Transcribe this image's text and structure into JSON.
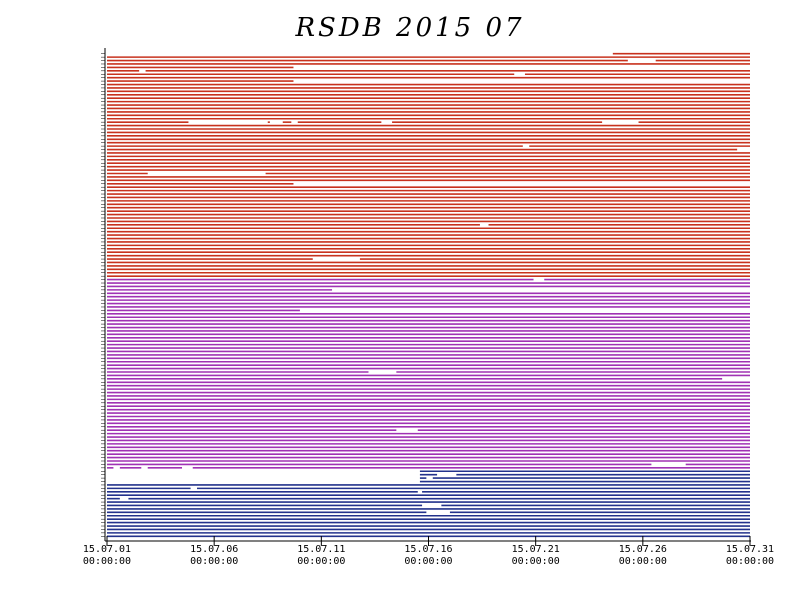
{
  "chart_data": {
    "type": "availability",
    "title": "RSDB 2015 07",
    "xlim": [
      0,
      30
    ],
    "xticks": [
      {
        "value": 0,
        "label": "15.07.01",
        "time": "00:00:00"
      },
      {
        "value": 5,
        "label": "15.07.06",
        "time": "00:00:00"
      },
      {
        "value": 10,
        "label": "15.07.11",
        "time": "00:00:00"
      },
      {
        "value": 15,
        "label": "15.07.16",
        "time": "00:00:00"
      },
      {
        "value": 20,
        "label": "15.07.21",
        "time": "00:00:00"
      },
      {
        "value": 25,
        "label": "15.07.26",
        "time": "00:00:00"
      },
      {
        "value": 30,
        "label": "15.07.31",
        "time": "00:00:00"
      }
    ],
    "groups": [
      {
        "color": "#c8321e",
        "rows": [
          [
            [
              23.6,
              30
            ]
          ],
          [
            [
              0,
              30
            ]
          ],
          [
            [
              0,
              24.3
            ],
            [
              25.6,
              30
            ]
          ],
          [
            [
              0,
              30
            ]
          ],
          [
            [
              0,
              8.7
            ]
          ],
          [
            [
              0,
              1.5
            ],
            [
              1.8,
              30
            ]
          ],
          [
            [
              0,
              19
            ],
            [
              19.5,
              30
            ]
          ],
          [
            [
              0,
              30
            ]
          ],
          [
            [
              0,
              8.7
            ]
          ],
          [
            [
              0,
              30
            ]
          ],
          [
            [
              0,
              30
            ]
          ],
          [
            [
              0,
              30
            ]
          ],
          [
            [
              0,
              30
            ]
          ],
          [
            [
              0,
              30
            ]
          ],
          [
            [
              0,
              30
            ]
          ],
          [
            [
              0,
              30
            ]
          ],
          [
            [
              0,
              30
            ]
          ],
          [
            [
              0,
              30
            ]
          ],
          [
            [
              0,
              30
            ]
          ],
          [
            [
              0,
              30
            ]
          ],
          [
            [
              0,
              3.8
            ],
            [
              7.5,
              7.6
            ],
            [
              8.2,
              8.6
            ],
            [
              8.9,
              12.8
            ],
            [
              13.3,
              23.1
            ],
            [
              24.8,
              30
            ]
          ],
          [
            [
              0,
              30
            ]
          ],
          [
            [
              0,
              30
            ]
          ],
          [
            [
              0,
              30
            ]
          ],
          [
            [
              0,
              30
            ]
          ],
          [
            [
              0,
              30
            ]
          ],
          [
            [
              0,
              30
            ]
          ],
          [
            [
              0,
              19.4
            ],
            [
              19.7,
              30
            ]
          ],
          [
            [
              0,
              29.4
            ]
          ],
          [
            [
              0,
              30
            ]
          ],
          [
            [
              0,
              30
            ]
          ],
          [
            [
              0,
              30
            ]
          ],
          [
            [
              0,
              30
            ]
          ],
          [
            [
              0,
              30
            ]
          ],
          [
            [
              0,
              30
            ]
          ],
          [
            [
              0,
              1.9
            ],
            [
              7.4,
              30
            ]
          ],
          [
            [
              0,
              30
            ]
          ],
          [
            [
              0,
              30
            ]
          ],
          [
            [
              0,
              8.7
            ]
          ],
          [
            [
              0,
              30
            ]
          ],
          [
            [
              0,
              30
            ]
          ],
          [
            [
              0,
              30
            ]
          ],
          [
            [
              0,
              30
            ]
          ],
          [
            [
              0,
              30
            ]
          ],
          [
            [
              0,
              30
            ]
          ],
          [
            [
              0,
              30
            ]
          ],
          [
            [
              0,
              30
            ]
          ],
          [
            [
              0,
              30
            ]
          ],
          [
            [
              0,
              30
            ]
          ],
          [
            [
              0,
              30
            ]
          ],
          [
            [
              0,
              17.4
            ],
            [
              17.8,
              30
            ]
          ],
          [
            [
              0,
              30
            ]
          ],
          [
            [
              0,
              30
            ]
          ],
          [
            [
              0,
              30
            ]
          ],
          [
            [
              0,
              30
            ]
          ],
          [
            [
              0,
              30
            ]
          ],
          [
            [
              0,
              30
            ]
          ],
          [
            [
              0,
              30
            ]
          ],
          [
            [
              0,
              30
            ]
          ],
          [
            [
              0,
              30
            ]
          ],
          [
            [
              0,
              9.6
            ],
            [
              11.8,
              30
            ]
          ],
          [
            [
              0,
              30
            ]
          ],
          [
            [
              0,
              30
            ]
          ],
          [
            [
              0,
              30
            ]
          ],
          [
            [
              0,
              30
            ]
          ],
          [
            [
              0,
              30
            ]
          ]
        ]
      },
      {
        "color": "#a032b4",
        "rows": [
          [
            [
              0,
              19.9
            ],
            [
              20.4,
              30
            ]
          ],
          [
            [
              0,
              30
            ]
          ],
          [
            [
              0,
              30
            ]
          ],
          [
            [
              0,
              10.5
            ]
          ],
          [
            [
              0,
              30
            ]
          ],
          [
            [
              0,
              30
            ]
          ],
          [
            [
              0,
              30
            ]
          ],
          [
            [
              0,
              30
            ]
          ],
          [
            [
              0,
              30
            ]
          ],
          [
            [
              0,
              9
            ]
          ],
          [
            [
              0,
              30
            ]
          ],
          [
            [
              0,
              30
            ]
          ],
          [
            [
              0,
              30
            ]
          ],
          [
            [
              0,
              30
            ]
          ],
          [
            [
              0,
              30
            ]
          ],
          [
            [
              0,
              30
            ]
          ],
          [
            [
              0,
              30
            ]
          ],
          [
            [
              0,
              30
            ]
          ],
          [
            [
              0,
              30
            ]
          ],
          [
            [
              0,
              30
            ]
          ],
          [
            [
              0,
              30
            ]
          ],
          [
            [
              0,
              30
            ]
          ],
          [
            [
              0,
              30
            ]
          ],
          [
            [
              0,
              30
            ]
          ],
          [
            [
              0,
              30
            ]
          ],
          [
            [
              0,
              30
            ]
          ],
          [
            [
              0,
              30
            ]
          ],
          [
            [
              0,
              12.2
            ],
            [
              13.5,
              30
            ]
          ],
          [
            [
              0,
              30
            ]
          ],
          [
            [
              0,
              28.7
            ]
          ],
          [
            [
              0,
              30
            ]
          ],
          [
            [
              0,
              30
            ]
          ],
          [
            [
              0,
              30
            ]
          ],
          [
            [
              0,
              30
            ]
          ],
          [
            [
              0,
              30
            ]
          ],
          [
            [
              0,
              30
            ]
          ],
          [
            [
              0,
              30
            ]
          ],
          [
            [
              0,
              30
            ]
          ],
          [
            [
              0,
              30
            ]
          ],
          [
            [
              0,
              30
            ]
          ],
          [
            [
              0,
              30
            ]
          ],
          [
            [
              0,
              30
            ]
          ],
          [
            [
              0,
              30
            ]
          ],
          [
            [
              0,
              30
            ]
          ],
          [
            [
              0,
              13.5
            ],
            [
              14.5,
              30
            ]
          ],
          [
            [
              0,
              30
            ]
          ],
          [
            [
              0,
              30
            ]
          ],
          [
            [
              0,
              30
            ]
          ],
          [
            [
              0,
              30
            ]
          ],
          [
            [
              0,
              30
            ]
          ],
          [
            [
              0,
              30
            ]
          ],
          [
            [
              0,
              30
            ]
          ],
          [
            [
              0,
              30
            ]
          ],
          [
            [
              0,
              30
            ]
          ],
          [
            [
              0,
              25.4
            ],
            [
              27,
              30
            ]
          ],
          [
            [
              0,
              0.3
            ],
            [
              0.6,
              1.6
            ],
            [
              1.9,
              3.5
            ],
            [
              4,
              30
            ]
          ]
        ]
      },
      {
        "color": "#23328c",
        "rows": [
          [
            [
              14.6,
              30
            ]
          ],
          [
            [
              14.6,
              15.4
            ],
            [
              16.3,
              30
            ]
          ],
          [
            [
              14.6,
              14.9
            ],
            [
              15.2,
              30
            ]
          ],
          [
            [
              14.6,
              30
            ]
          ],
          [
            [
              0,
              30
            ]
          ],
          [
            [
              0,
              3.9
            ],
            [
              4.2,
              30
            ]
          ],
          [
            [
              0,
              14.5
            ],
            [
              14.7,
              30
            ]
          ],
          [
            [
              0,
              30
            ]
          ],
          [
            [
              0,
              0.6
            ],
            [
              1,
              30
            ]
          ],
          [
            [
              0,
              30
            ]
          ],
          [
            [
              0,
              14.7
            ],
            [
              15.6,
              30
            ]
          ],
          [
            [
              0,
              30
            ]
          ],
          [
            [
              0,
              14.9
            ],
            [
              16,
              30
            ]
          ],
          [
            [
              0,
              30
            ]
          ],
          [
            [
              0,
              30
            ]
          ],
          [
            [
              0,
              30
            ]
          ],
          [
            [
              0,
              30
            ]
          ],
          [
            [
              0,
              30
            ]
          ],
          [
            [
              0,
              30
            ]
          ],
          [
            [
              0,
              30
            ]
          ]
        ]
      }
    ]
  }
}
